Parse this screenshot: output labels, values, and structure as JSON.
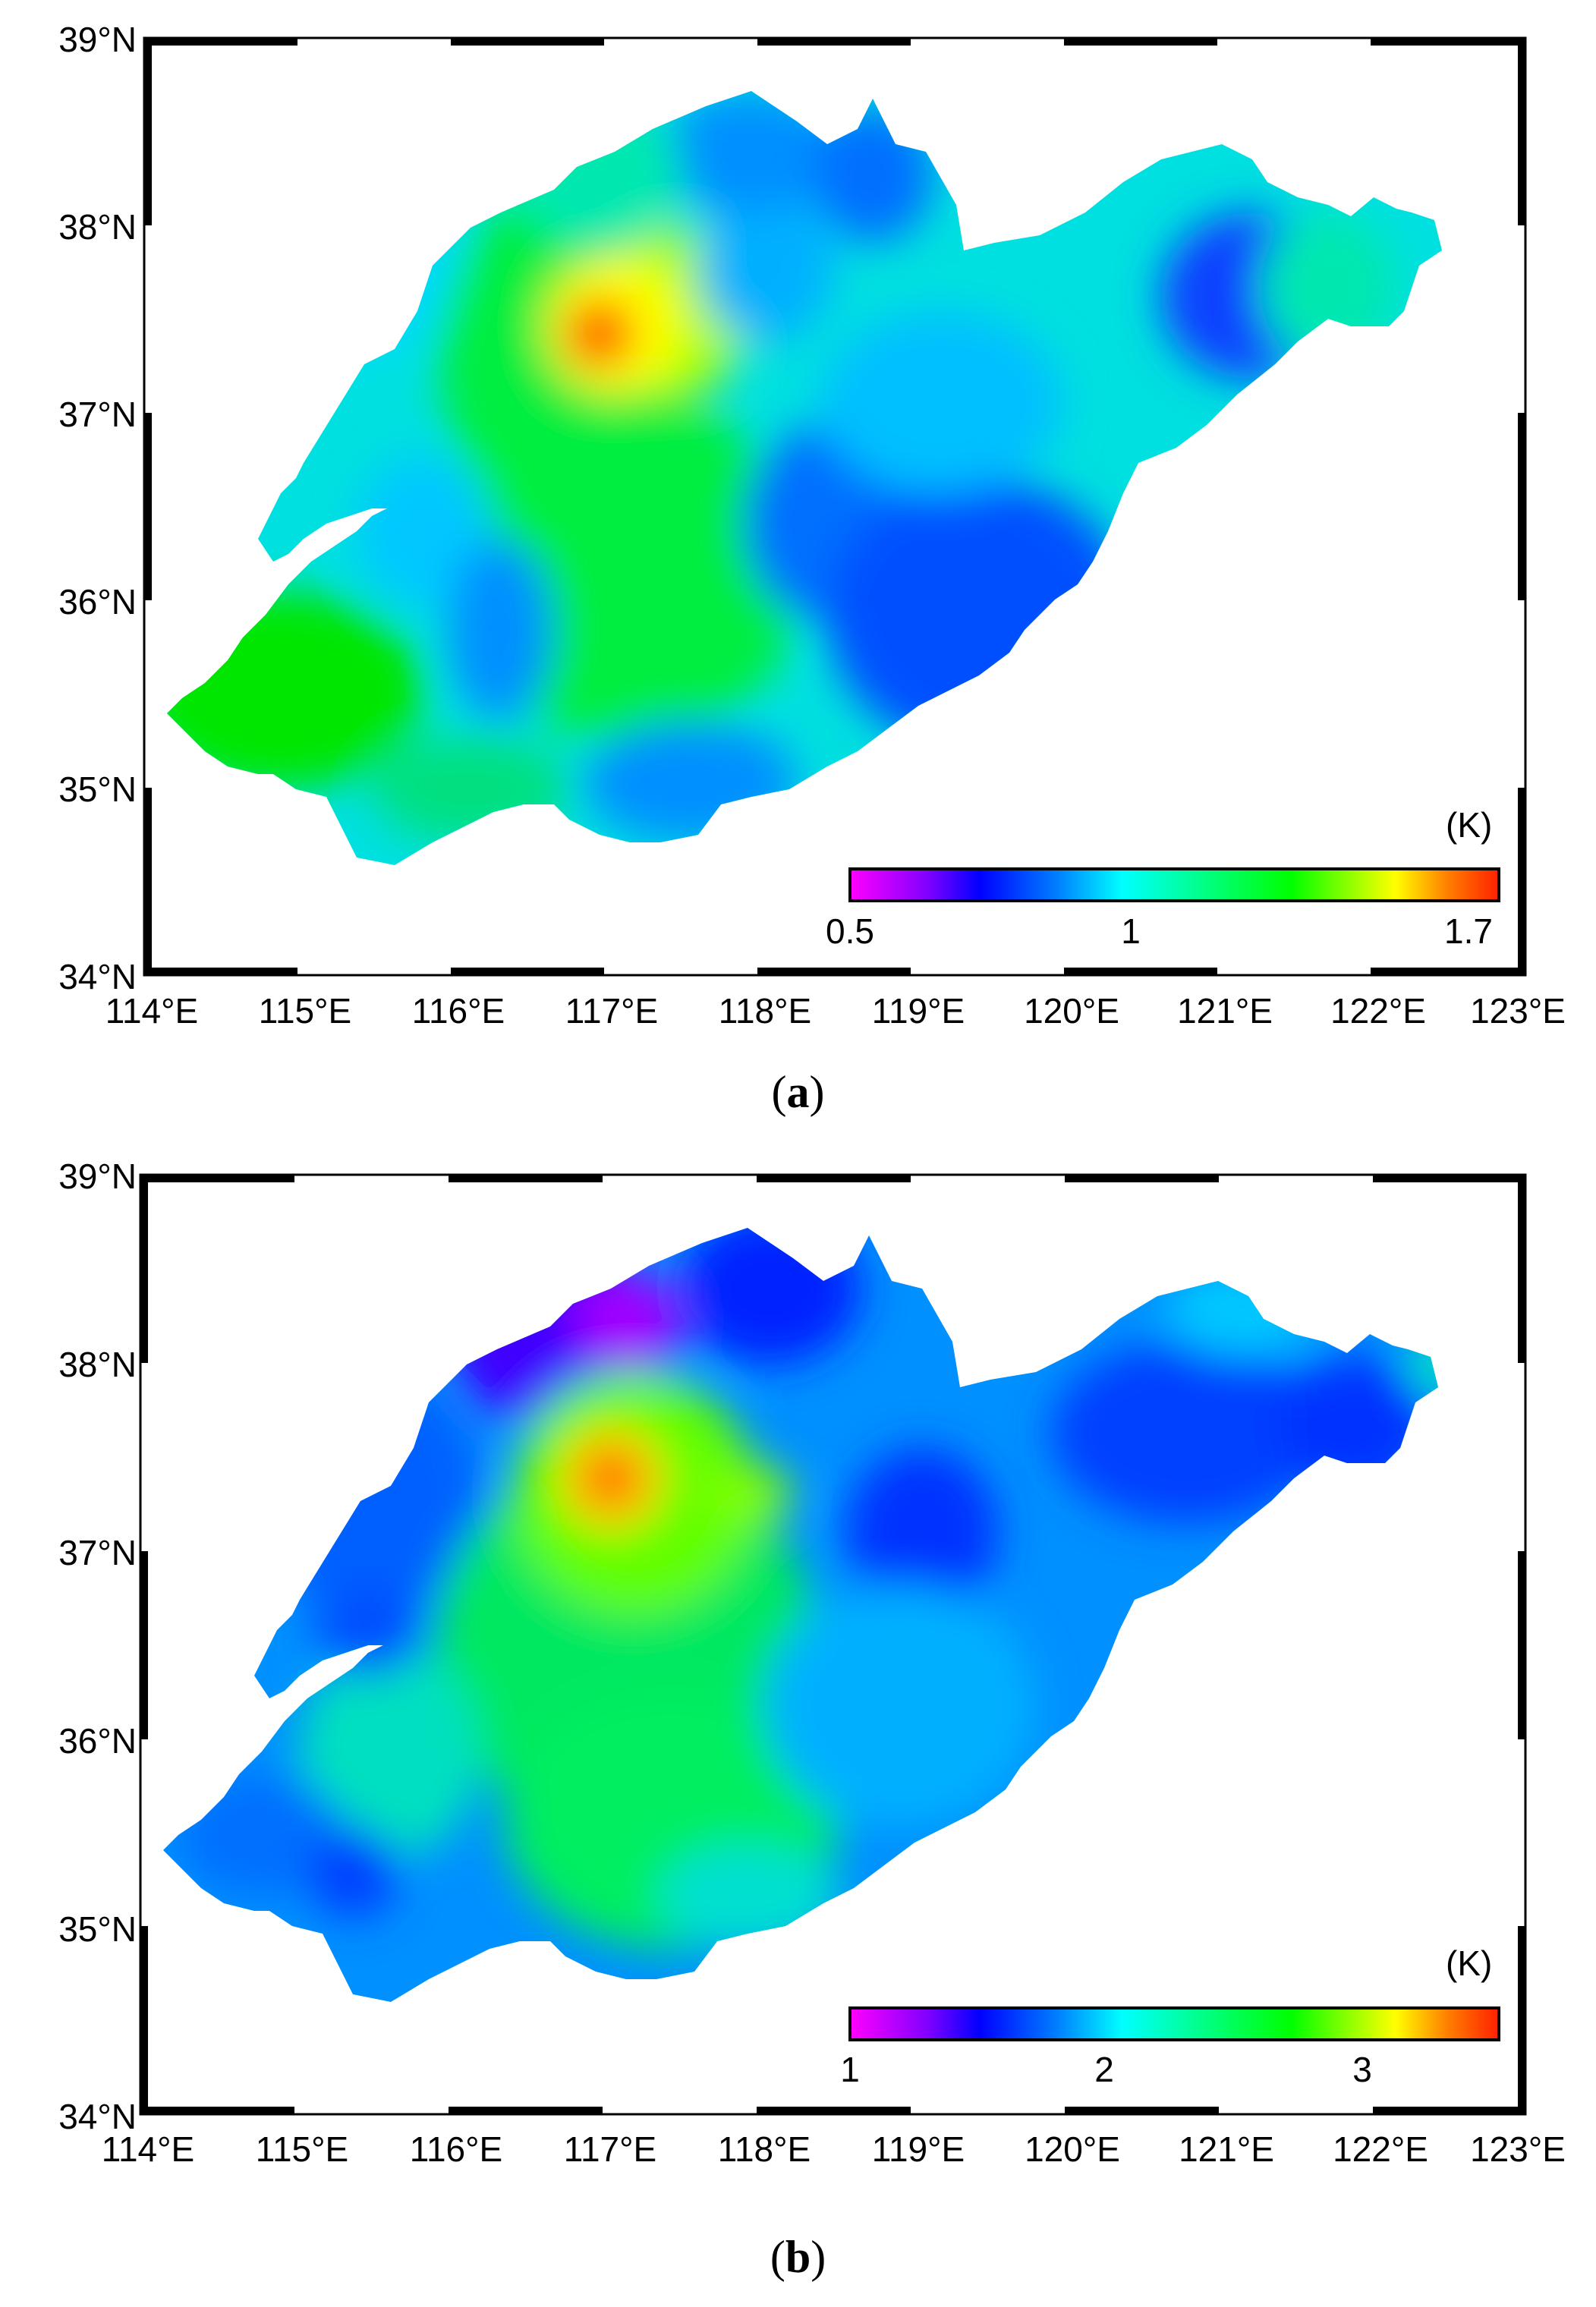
{
  "figure": {
    "lat_ticks": [
      "39°N",
      "38°N",
      "37°N",
      "36°N",
      "35°N",
      "34°N"
    ],
    "lon_ticks": [
      "114°E",
      "115°E",
      "116°E",
      "117°E",
      "118°E",
      "119°E",
      "120°E",
      "121°E",
      "122°E",
      "123°E"
    ]
  },
  "panels": [
    {
      "caption_open": "(",
      "caption_letter": "a",
      "caption_close": ")",
      "colorbar": {
        "unit": "(K)",
        "ticks": [
          "0.5",
          "1",
          "1.7"
        ],
        "range": [
          0.5,
          1.7
        ]
      }
    },
    {
      "caption_open": "(",
      "caption_letter": "b",
      "caption_close": ")",
      "colorbar": {
        "unit": "(K)",
        "ticks": [
          "1",
          "2",
          "3"
        ],
        "range": [
          1,
          3.5
        ]
      }
    }
  ],
  "colors": {
    "colormap": [
      "#ff00ff",
      "#8000ff",
      "#0000ff",
      "#0080ff",
      "#00ffff",
      "#00ff80",
      "#00ff00",
      "#80ff00",
      "#ffff00",
      "#ff8000",
      "#ff2000"
    ],
    "frame": "#000000"
  }
}
